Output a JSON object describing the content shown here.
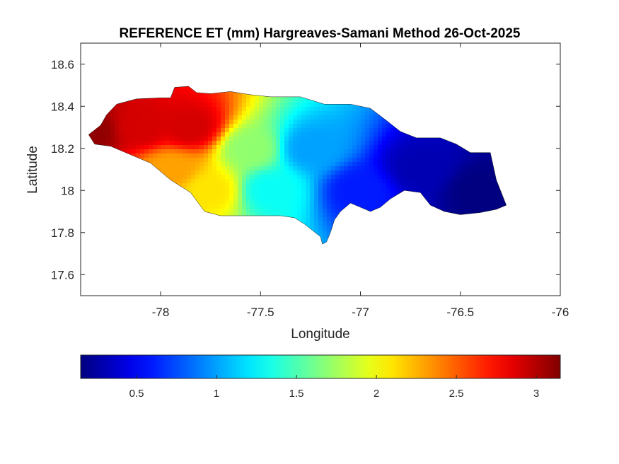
{
  "chart_data": {
    "type": "heatmap",
    "title": "REFERENCE ET (mm) Hargreaves-Samani Method  26-Oct-2025",
    "xlabel": "Longitude",
    "ylabel": "Latitude",
    "xlim": [
      -78.4,
      -76.0
    ],
    "ylim": [
      17.5,
      18.7
    ],
    "xticks": [
      -78,
      -77.5,
      -77,
      -76.5,
      -76
    ],
    "xtick_labels": [
      "-78",
      "-77.5",
      "-77",
      "-76.5",
      "-76"
    ],
    "yticks": [
      17.6,
      17.8,
      18.0,
      18.2,
      18.4,
      18.6
    ],
    "ytick_labels": [
      "17.6",
      "17.8",
      "18",
      "18.2",
      "18.4",
      "18.6"
    ],
    "colormap": "jet",
    "colorbar": {
      "position": "bottom",
      "range": [
        0.15,
        3.15
      ],
      "ticks": [
        0.5,
        1,
        1.5,
        2,
        2.5,
        3
      ],
      "tick_labels": [
        "0.5",
        "1",
        "1.5",
        "2",
        "2.5",
        "3"
      ]
    },
    "grid": false,
    "field": {
      "description_units": "mm",
      "gradient_nodes": [
        {
          "lon": -78.35,
          "lat": 18.28,
          "value": 3.1
        },
        {
          "lon": -78.1,
          "lat": 18.3,
          "value": 2.9
        },
        {
          "lon": -77.85,
          "lat": 18.3,
          "value": 2.9
        },
        {
          "lon": -77.95,
          "lat": 18.1,
          "value": 2.3
        },
        {
          "lon": -77.75,
          "lat": 18.0,
          "value": 2.1
        },
        {
          "lon": -77.55,
          "lat": 18.2,
          "value": 1.7
        },
        {
          "lon": -77.45,
          "lat": 18.0,
          "value": 1.3
        },
        {
          "lon": -77.25,
          "lat": 18.2,
          "value": 1.0
        },
        {
          "lon": -77.0,
          "lat": 18.0,
          "value": 0.6
        },
        {
          "lon": -76.7,
          "lat": 18.1,
          "value": 0.3
        },
        {
          "lon": -76.4,
          "lat": 18.0,
          "value": 0.15
        }
      ],
      "boundary": [
        [
          -78.36,
          18.265
        ],
        [
          -78.3,
          18.31
        ],
        [
          -78.27,
          18.36
        ],
        [
          -78.22,
          18.41
        ],
        [
          -78.12,
          18.435
        ],
        [
          -78.0,
          18.44
        ],
        [
          -77.95,
          18.44
        ],
        [
          -77.93,
          18.49
        ],
        [
          -77.86,
          18.495
        ],
        [
          -77.82,
          18.465
        ],
        [
          -77.75,
          18.46
        ],
        [
          -77.65,
          18.47
        ],
        [
          -77.55,
          18.455
        ],
        [
          -77.45,
          18.445
        ],
        [
          -77.3,
          18.445
        ],
        [
          -77.25,
          18.43
        ],
        [
          -77.18,
          18.41
        ],
        [
          -77.05,
          18.41
        ],
        [
          -76.95,
          18.39
        ],
        [
          -76.88,
          18.34
        ],
        [
          -76.8,
          18.28
        ],
        [
          -76.72,
          18.25
        ],
        [
          -76.6,
          18.25
        ],
        [
          -76.52,
          18.22
        ],
        [
          -76.45,
          18.18
        ],
        [
          -76.35,
          18.18
        ],
        [
          -76.32,
          18.05
        ],
        [
          -76.27,
          17.93
        ],
        [
          -76.32,
          17.91
        ],
        [
          -76.4,
          17.895
        ],
        [
          -76.5,
          17.885
        ],
        [
          -76.58,
          17.9
        ],
        [
          -76.65,
          17.93
        ],
        [
          -76.7,
          17.99
        ],
        [
          -76.78,
          18.0
        ],
        [
          -76.85,
          17.96
        ],
        [
          -76.9,
          17.92
        ],
        [
          -76.95,
          17.9
        ],
        [
          -77.0,
          17.92
        ],
        [
          -77.05,
          17.94
        ],
        [
          -77.1,
          17.9
        ],
        [
          -77.13,
          17.86
        ],
        [
          -77.15,
          17.8
        ],
        [
          -77.17,
          17.755
        ],
        [
          -77.19,
          17.745
        ],
        [
          -77.2,
          17.78
        ],
        [
          -77.24,
          17.81
        ],
        [
          -77.28,
          17.84
        ],
        [
          -77.33,
          17.87
        ],
        [
          -77.4,
          17.88
        ],
        [
          -77.5,
          17.88
        ],
        [
          -77.6,
          17.88
        ],
        [
          -77.7,
          17.88
        ],
        [
          -77.78,
          17.9
        ],
        [
          -77.85,
          17.99
        ],
        [
          -77.95,
          18.05
        ],
        [
          -78.05,
          18.13
        ],
        [
          -78.15,
          18.17
        ],
        [
          -78.25,
          18.21
        ],
        [
          -78.33,
          18.22
        ]
      ]
    }
  }
}
